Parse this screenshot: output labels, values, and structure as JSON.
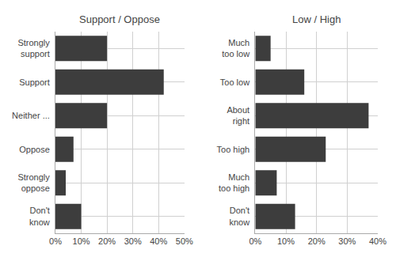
{
  "chart_data": [
    {
      "type": "bar",
      "orientation": "horizontal",
      "title": "Support / Oppose",
      "categories": [
        "Strongly\nsupport",
        "Support",
        "Neither ...",
        "Oppose",
        "Strongly\noppose",
        "Don't\nknow"
      ],
      "values": [
        20,
        42,
        20,
        7,
        4,
        10
      ],
      "color": "#3d3d3d",
      "xlim": [
        0,
        50
      ],
      "xticks": [
        {
          "value": 0,
          "label": "0%"
        },
        {
          "value": 10,
          "label": "10%"
        },
        {
          "value": 20,
          "label": "20%"
        },
        {
          "value": 30,
          "label": "30%"
        },
        {
          "value": 40,
          "label": "40%"
        },
        {
          "value": 50,
          "label": "50%"
        }
      ],
      "grid": true
    },
    {
      "type": "bar",
      "orientation": "horizontal",
      "title": "Low / High",
      "categories": [
        "Much\ntoo low",
        "Too low",
        "About\nright",
        "Too high",
        "Much\ntoo high",
        "Don't\nknow"
      ],
      "values": [
        5,
        16,
        37,
        23,
        7,
        13
      ],
      "color": "#3d3d3d",
      "xlim": [
        0,
        40
      ],
      "xticks": [
        {
          "value": 0,
          "label": "0%"
        },
        {
          "value": 10,
          "label": "10%"
        },
        {
          "value": 20,
          "label": "20%"
        },
        {
          "value": 30,
          "label": "30%"
        },
        {
          "value": 40,
          "label": "40%"
        }
      ],
      "grid": true
    }
  ]
}
